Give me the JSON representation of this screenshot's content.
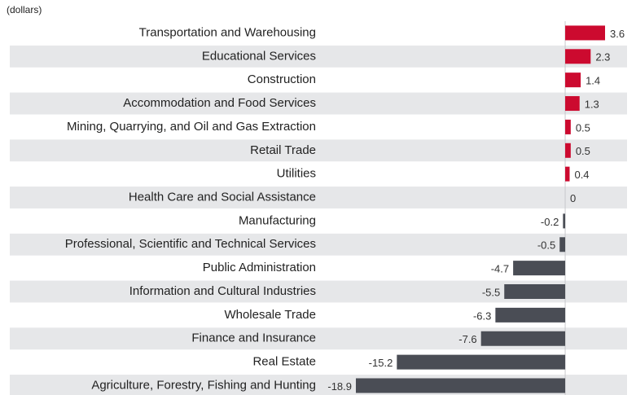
{
  "chart_data": {
    "type": "bar",
    "orientation": "horizontal",
    "subtitle": "(dollars)",
    "categories": [
      "Transportation and Warehousing",
      "Educational Services",
      "Construction",
      "Accommodation and Food Services",
      "Mining, Quarrying, and Oil and Gas Extraction",
      "Retail Trade",
      "Utilities",
      "Health Care and Social Assistance",
      "Manufacturing",
      "Professional, Scientific and Technical Services",
      "Public Administration",
      "Information and Cultural Industries",
      "Wholesale Trade",
      "Finance and Insurance",
      "Real Estate",
      "Agriculture, Forestry, Fishing and Hunting"
    ],
    "values": [
      3.6,
      2.3,
      1.4,
      1.3,
      0.5,
      0.5,
      0.4,
      0,
      -0.2,
      -0.5,
      -4.7,
      -5.5,
      -6.3,
      -7.6,
      -15.2,
      -18.9
    ],
    "positive_color": "#cc0a2f",
    "negative_color": "#4a4d55"
  }
}
